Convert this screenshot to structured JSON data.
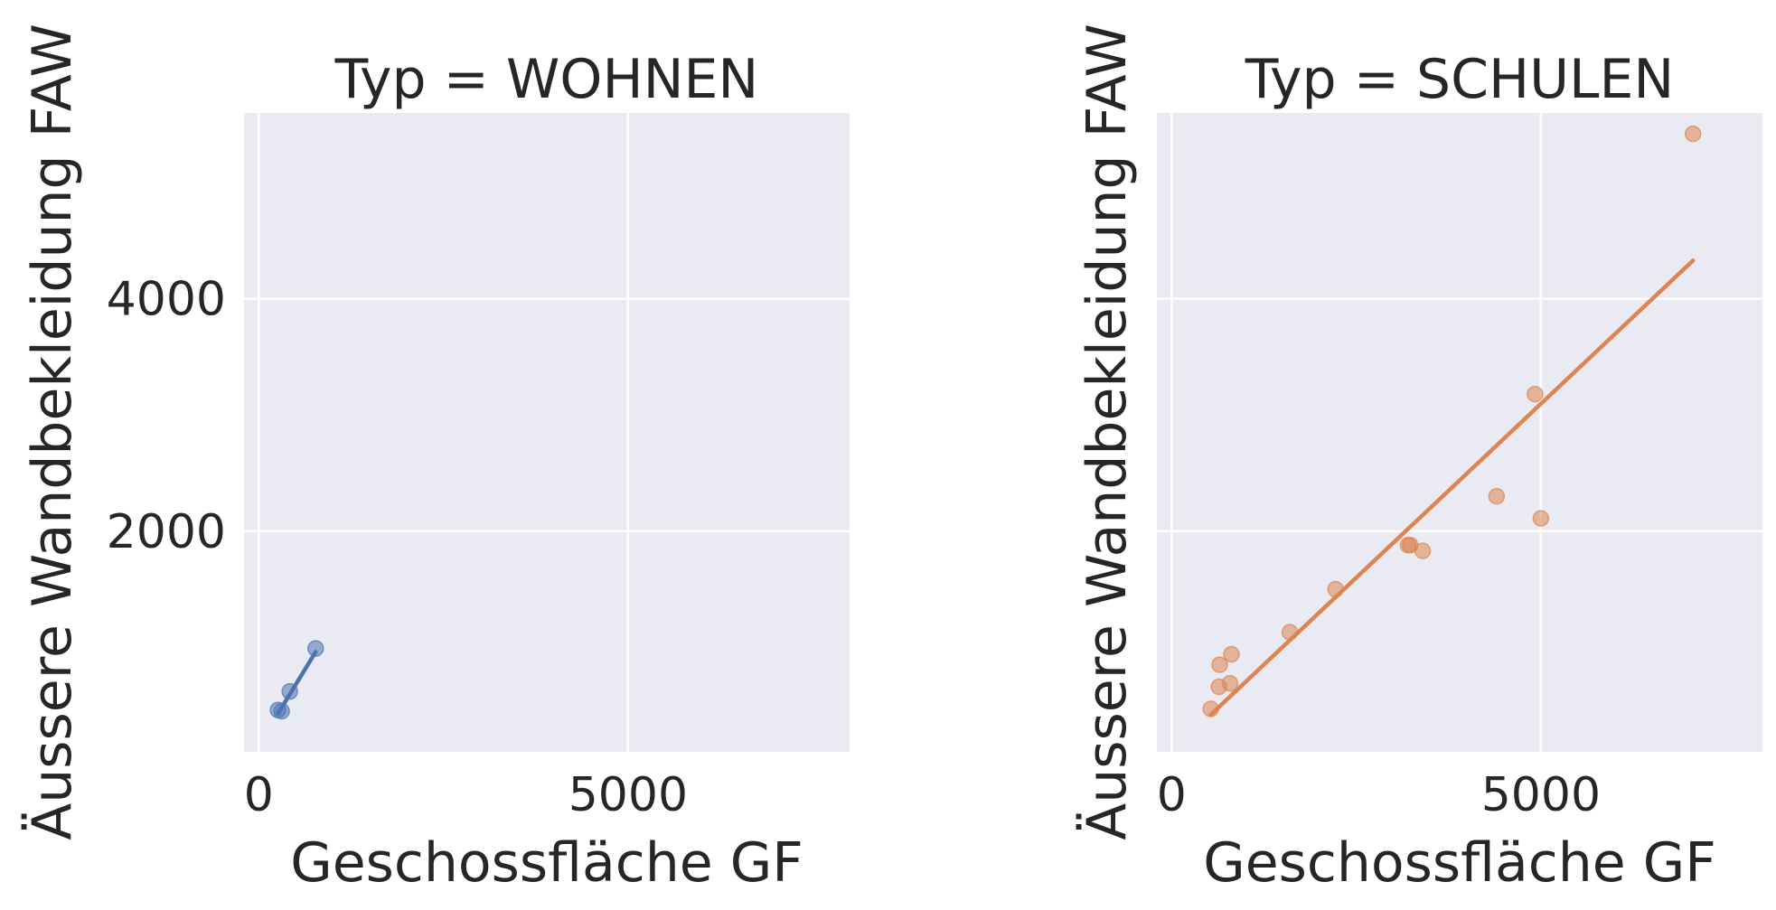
{
  "chart_data": [
    {
      "type": "scatter",
      "title": "Typ = WOHNEN",
      "xlabel": "Geschossfläche GF",
      "ylabel": "Äussere Wandbekleidung FAW",
      "xlim": [
        -200,
        8000
      ],
      "ylim": [
        100,
        5600
      ],
      "xticks": [
        0,
        5000
      ],
      "yticks": [
        2000,
        4000
      ],
      "xtick_labels": [
        "0",
        "5000"
      ],
      "ytick_labels": [
        "2000",
        "4000"
      ],
      "show_yticklabels": true,
      "grid": true,
      "color": "#4c72b0",
      "points": [
        {
          "x": 260,
          "y": 460
        },
        {
          "x": 310,
          "y": 450
        },
        {
          "x": 420,
          "y": 620
        },
        {
          "x": 770,
          "y": 990
        }
      ],
      "regression_line": {
        "x": [
          260,
          770
        ],
        "y": [
          430,
          960
        ]
      }
    },
    {
      "type": "scatter",
      "title": "Typ = SCHULEN",
      "xlabel": "Geschossfläche GF",
      "ylabel": "Äussere Wandbekleidung FAW",
      "xlim": [
        -200,
        8000
      ],
      "ylim": [
        100,
        5600
      ],
      "xticks": [
        0,
        5000
      ],
      "yticks": [
        2000,
        4000
      ],
      "xtick_labels": [
        "0",
        "5000"
      ],
      "ytick_labels": [
        "2000",
        "4000"
      ],
      "show_yticklabels": false,
      "grid": true,
      "color": "#dd8452",
      "points": [
        {
          "x": 530,
          "y": 470
        },
        {
          "x": 640,
          "y": 660
        },
        {
          "x": 650,
          "y": 850
        },
        {
          "x": 790,
          "y": 690
        },
        {
          "x": 810,
          "y": 940
        },
        {
          "x": 1600,
          "y": 1130
        },
        {
          "x": 2220,
          "y": 1500
        },
        {
          "x": 3200,
          "y": 1880
        },
        {
          "x": 3230,
          "y": 1880
        },
        {
          "x": 3400,
          "y": 1830
        },
        {
          "x": 4400,
          "y": 2300
        },
        {
          "x": 4920,
          "y": 3180
        },
        {
          "x": 5000,
          "y": 2110
        },
        {
          "x": 7060,
          "y": 5420
        }
      ],
      "regression_line": {
        "x": [
          530,
          7060
        ],
        "y": [
          420,
          4330
        ]
      }
    }
  ]
}
